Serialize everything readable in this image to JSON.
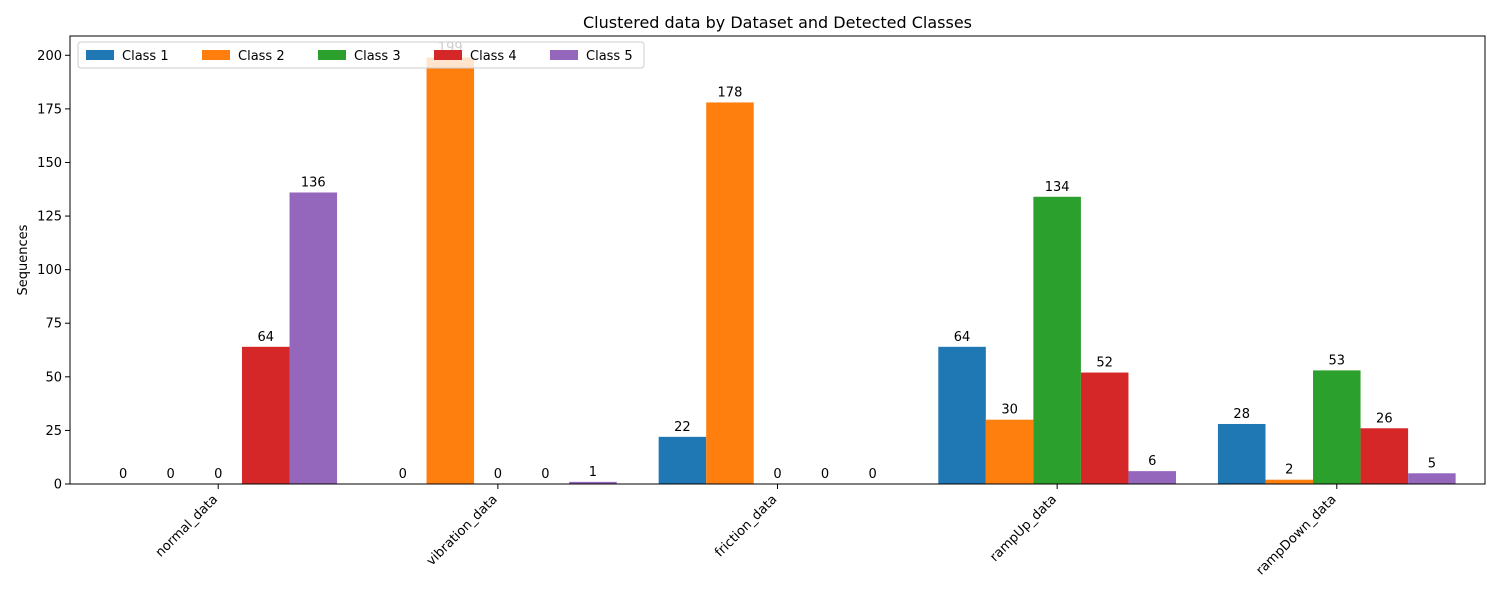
{
  "chart_data": {
    "type": "bar",
    "title": "Clustered data by Dataset and Detected Classes",
    "xlabel": "",
    "ylabel": "Sequences",
    "categories": [
      "normal_data",
      "vibration_data",
      "friction_data",
      "rampUp_data",
      "rampDown_data"
    ],
    "series": [
      {
        "name": "Class 1",
        "color": "#1f77b4",
        "values": [
          0,
          0,
          22,
          64,
          28
        ]
      },
      {
        "name": "Class 2",
        "color": "#ff7f0e",
        "values": [
          0,
          199,
          178,
          30,
          2
        ]
      },
      {
        "name": "Class 3",
        "color": "#2ca02c",
        "values": [
          0,
          0,
          0,
          134,
          53
        ]
      },
      {
        "name": "Class 4",
        "color": "#d62728",
        "values": [
          64,
          0,
          0,
          52,
          26
        ]
      },
      {
        "name": "Class 5",
        "color": "#9467bd",
        "values": [
          136,
          1,
          0,
          6,
          5
        ]
      }
    ],
    "ylim": [
      0,
      209
    ],
    "yticks": [
      0,
      25,
      50,
      75,
      100,
      125,
      150,
      175,
      200
    ],
    "grid": false,
    "legend_position": "top-left",
    "data_labels": [
      [
        "0",
        "0",
        "0",
        "64",
        "136"
      ],
      [
        "0",
        "199",
        "0",
        "0",
        "1"
      ],
      [
        "22",
        "178",
        "0",
        "0",
        "0"
      ],
      [
        "64",
        "30",
        "134",
        "52",
        "6"
      ],
      [
        "28",
        "2",
        "53",
        "26",
        "5"
      ]
    ]
  }
}
